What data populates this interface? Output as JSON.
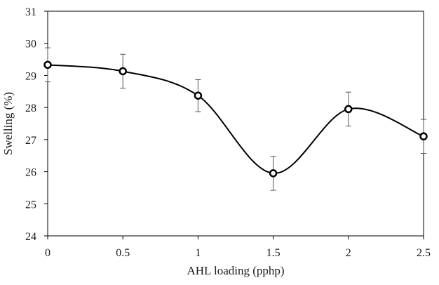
{
  "chart_data": {
    "type": "line",
    "xlabel": "AHL loading (pphp)",
    "ylabel": "Swelling (%)",
    "x": [
      0,
      0.5,
      1,
      1.5,
      2,
      2.5
    ],
    "xticks": [
      "0",
      "0.5",
      "1",
      "1.5",
      "2",
      "2.5"
    ],
    "xlim": [
      0,
      2.5
    ],
    "yticks": [
      "24",
      "25",
      "26",
      "27",
      "28",
      "29",
      "30",
      "31"
    ],
    "ylim": [
      24,
      31
    ],
    "grid": false,
    "legend": "none",
    "smooth": true,
    "series": [
      {
        "values": [
          29.33,
          29.13,
          28.37,
          25.95,
          27.95,
          27.1
        ],
        "error": [
          0.53,
          0.53,
          0.5,
          0.53,
          0.53,
          0.53
        ]
      }
    ],
    "colors": {
      "line": "#000000",
      "marker_fill": "#ffffff",
      "error_bar": "#555555",
      "frame": "#000000"
    }
  }
}
